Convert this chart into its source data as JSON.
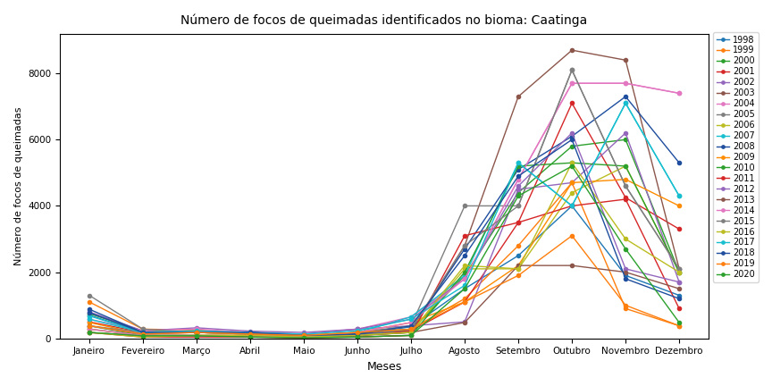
{
  "title": "Número de focos de queimadas identificados no bioma: Caatinga",
  "xlabel": "Meses",
  "ylabel": "Número de focos de queimadas",
  "months": [
    "Janeiro",
    "Fevereiro",
    "Março",
    "Abril",
    "Maio",
    "Junho",
    "Julho",
    "Agosto",
    "Setembro",
    "Outubro",
    "Novembro",
    "Dezembro"
  ],
  "series": {
    "1998": [
      700,
      180,
      200,
      150,
      80,
      120,
      350,
      1500,
      2500,
      4000,
      1900,
      1300
    ],
    "1999": [
      1100,
      280,
      250,
      180,
      90,
      170,
      280,
      1200,
      2800,
      4700,
      900,
      380
    ],
    "2000": [
      750,
      220,
      180,
      130,
      80,
      130,
      230,
      1900,
      4400,
      5800,
      6000,
      2000
    ],
    "2001": [
      500,
      180,
      180,
      130,
      70,
      90,
      230,
      1100,
      3500,
      7100,
      4250,
      3300
    ],
    "2002": [
      800,
      230,
      320,
      220,
      180,
      280,
      380,
      500,
      4500,
      4700,
      6200,
      1700
    ],
    "2003": [
      280,
      90,
      90,
      90,
      40,
      90,
      180,
      2800,
      7300,
      8700,
      8400,
      2100
    ],
    "2004": [
      580,
      230,
      280,
      180,
      130,
      280,
      650,
      1800,
      4800,
      7700,
      7700,
      7400
    ],
    "2005": [
      1300,
      280,
      180,
      180,
      90,
      180,
      380,
      4000,
      4000,
      8100,
      4600,
      2100
    ],
    "2006": [
      280,
      90,
      90,
      90,
      40,
      90,
      180,
      2100,
      2100,
      4400,
      5200,
      2000
    ],
    "2007": [
      680,
      180,
      180,
      130,
      90,
      180,
      650,
      1900,
      5300,
      4000,
      7100,
      4300
    ],
    "2008": [
      880,
      180,
      180,
      180,
      90,
      130,
      280,
      2700,
      5100,
      6100,
      7300,
      5300
    ],
    "2009": [
      480,
      130,
      180,
      130,
      90,
      180,
      480,
      1100,
      2200,
      4700,
      4800,
      4000
    ],
    "2010": [
      380,
      90,
      90,
      40,
      20,
      40,
      90,
      2000,
      5200,
      5300,
      5200,
      2000
    ],
    "2011": [
      180,
      40,
      40,
      40,
      20,
      40,
      90,
      3100,
      3500,
      4000,
      4200,
      900
    ],
    "2012": [
      380,
      130,
      180,
      180,
      130,
      280,
      580,
      1800,
      4600,
      6200,
      2100,
      1700
    ],
    "2013": [
      180,
      80,
      80,
      80,
      40,
      80,
      180,
      480,
      2200,
      2200,
      2000,
      1500
    ],
    "2014": [
      280,
      90,
      90,
      90,
      40,
      180,
      480,
      1800,
      4800,
      7700,
      7700,
      7400
    ],
    "2015": [
      380,
      180,
      180,
      130,
      90,
      90,
      280,
      2800,
      4000,
      8100,
      4600,
      2100
    ],
    "2016": [
      180,
      40,
      90,
      90,
      40,
      90,
      180,
      2200,
      2100,
      5300,
      3000,
      2000
    ],
    "2017": [
      580,
      180,
      230,
      180,
      130,
      230,
      580,
      1600,
      5300,
      4000,
      7100,
      4300
    ],
    "2018": [
      780,
      180,
      180,
      180,
      90,
      130,
      380,
      2500,
      4900,
      6000,
      1800,
      1200
    ],
    "2019": [
      380,
      130,
      180,
      130,
      90,
      180,
      280,
      1100,
      1900,
      3100,
      1000,
      380
    ],
    "2020": [
      180,
      80,
      80,
      40,
      20,
      40,
      90,
      1500,
      4300,
      5200,
      2700,
      480
    ]
  },
  "colors": {
    "1998": "#1f77b4",
    "1999": "#ff7f0e",
    "2000": "#2ca02c",
    "2001": "#d62728",
    "2002": "#9467bd",
    "2003": "#8c564b",
    "2004": "#e377c2",
    "2005": "#7f7f7f",
    "2006": "#bcbd22",
    "2007": "#17becf",
    "2008": "#1f4e9e",
    "2009": "#ff8c00",
    "2010": "#2ca02c",
    "2011": "#d62728",
    "2012": "#9467bd",
    "2013": "#8c564b",
    "2014": "#e377c2",
    "2015": "#7f7f7f",
    "2016": "#bcbd22",
    "2017": "#17becf",
    "2018": "#1f4e9e",
    "2019": "#ff7f0e",
    "2020": "#2ca02c"
  },
  "figsize": [
    8.64,
    4.32
  ],
  "dpi": 100,
  "ylim": [
    0,
    9200
  ]
}
